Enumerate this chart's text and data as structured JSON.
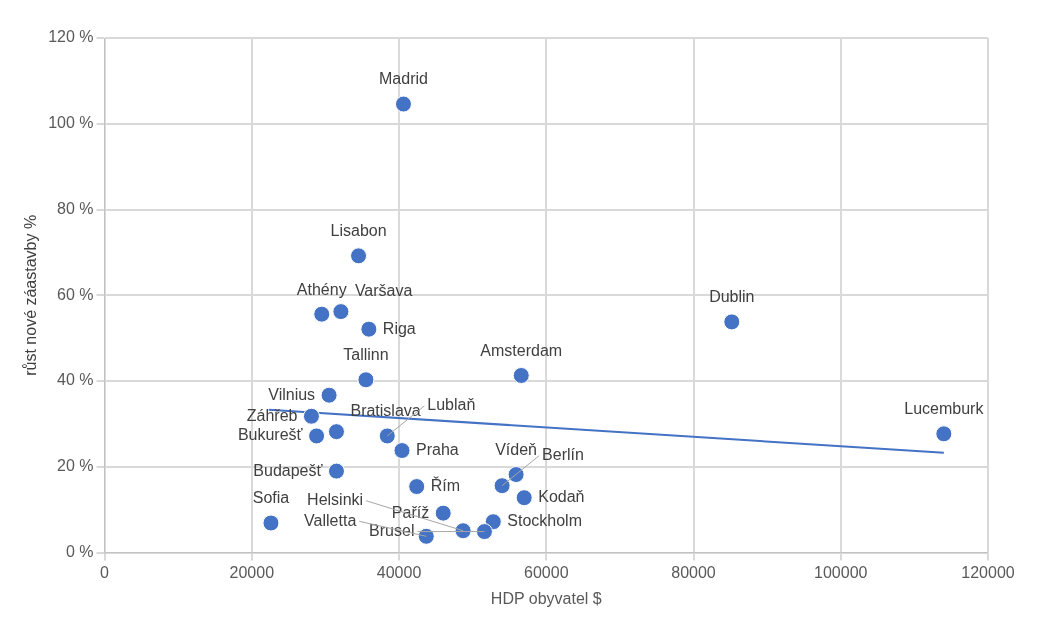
{
  "chart_data": {
    "type": "scatter",
    "xlabel": "HDP obyvatel $",
    "ylabel": "růst nové záastavby %",
    "x": [
      40600,
      34500,
      29500,
      32100,
      35900,
      35500,
      30500,
      28100,
      28800,
      31500,
      38400,
      40400,
      31500,
      42400,
      54000,
      55900,
      57000,
      46000,
      52800,
      51600,
      48700,
      43700,
      22600,
      56600,
      85200,
      114000
    ],
    "series": [
      {
        "type": "scatter",
        "color": "#4472c4",
        "values": [
          104.6,
          69.2,
          55.6,
          56.2,
          52.1,
          40.3,
          36.7,
          31.8,
          27.2,
          28.2,
          27.2,
          23.8,
          19.0,
          15.4,
          15.6,
          18.2,
          12.8,
          9.2,
          7.2,
          4.9,
          5.1,
          3.8,
          6.9,
          41.3,
          53.8,
          27.7
        ]
      },
      {
        "type": "line",
        "marker": "none",
        "color": "#4472c4",
        "x": [
          22300,
          114000
        ],
        "values": [
          33.3,
          23.3
        ]
      }
    ],
    "annotations": [
      {
        "text": "Madrid",
        "x": 40600,
        "y": 104.6
      },
      {
        "text": "Lisabon",
        "x": 34500,
        "y": 69.2
      },
      {
        "text": "Athény",
        "x": 29500,
        "y": 55.6
      },
      {
        "text": "Varšava",
        "x": 32100,
        "y": 56.2
      },
      {
        "text": "Riga",
        "x": 35900,
        "y": 52.1
      },
      {
        "text": "Tallinn",
        "x": 35500,
        "y": 40.3
      },
      {
        "text": "Vilnius",
        "x": 30500,
        "y": 36.7
      },
      {
        "text": "Záhřeb",
        "x": 28100,
        "y": 31.8
      },
      {
        "text": "Bukurešť",
        "x": 28800,
        "y": 27.2
      },
      {
        "text": "Bratislava",
        "x": 31500,
        "y": 28.2
      },
      {
        "text": "Lublaň",
        "x": 38400,
        "y": 27.2
      },
      {
        "text": "Praha",
        "x": 40400,
        "y": 23.8
      },
      {
        "text": "Budapešť",
        "x": 31500,
        "y": 19.0
      },
      {
        "text": "Řím",
        "x": 42400,
        "y": 15.4
      },
      {
        "text": "Berlín",
        "x": 54000,
        "y": 15.6
      },
      {
        "text": "Vídeň",
        "x": 55900,
        "y": 18.2
      },
      {
        "text": "Kodaň",
        "x": 57000,
        "y": 12.8
      },
      {
        "text": "Paříž",
        "x": 46000,
        "y": 9.2
      },
      {
        "text": "Stockholm",
        "x": 52800,
        "y": 7.2
      },
      {
        "text": "Brusel",
        "x": 51600,
        "y": 4.9
      },
      {
        "text": "Helsinki",
        "x": 48700,
        "y": 5.1
      },
      {
        "text": "Valletta",
        "x": 43700,
        "y": 3.8
      },
      {
        "text": "Sofia",
        "x": 22600,
        "y": 6.9
      },
      {
        "text": "Amsterdam",
        "x": 56600,
        "y": 41.3
      },
      {
        "text": "Dublin",
        "x": 85200,
        "y": 53.8
      },
      {
        "text": "Lucemburk",
        "x": 114000,
        "y": 27.7
      }
    ],
    "xlim": [
      0,
      120000
    ],
    "xticks": [
      0,
      20000,
      40000,
      60000,
      80000,
      100000,
      120000
    ],
    "ylim": [
      0,
      120
    ],
    "yticks": [
      {
        "value": 0,
        "label": "0 %"
      },
      {
        "value": 20,
        "label": "20 %"
      },
      {
        "value": 40,
        "label": "40 %"
      },
      {
        "value": 60,
        "label": "60 %"
      },
      {
        "value": 80,
        "label": "80 %"
      },
      {
        "value": 100,
        "label": "100 %"
      },
      {
        "value": 120,
        "label": "120 %"
      }
    ],
    "grid": true,
    "legend": false,
    "marker": "circle",
    "line_style": "solid"
  }
}
